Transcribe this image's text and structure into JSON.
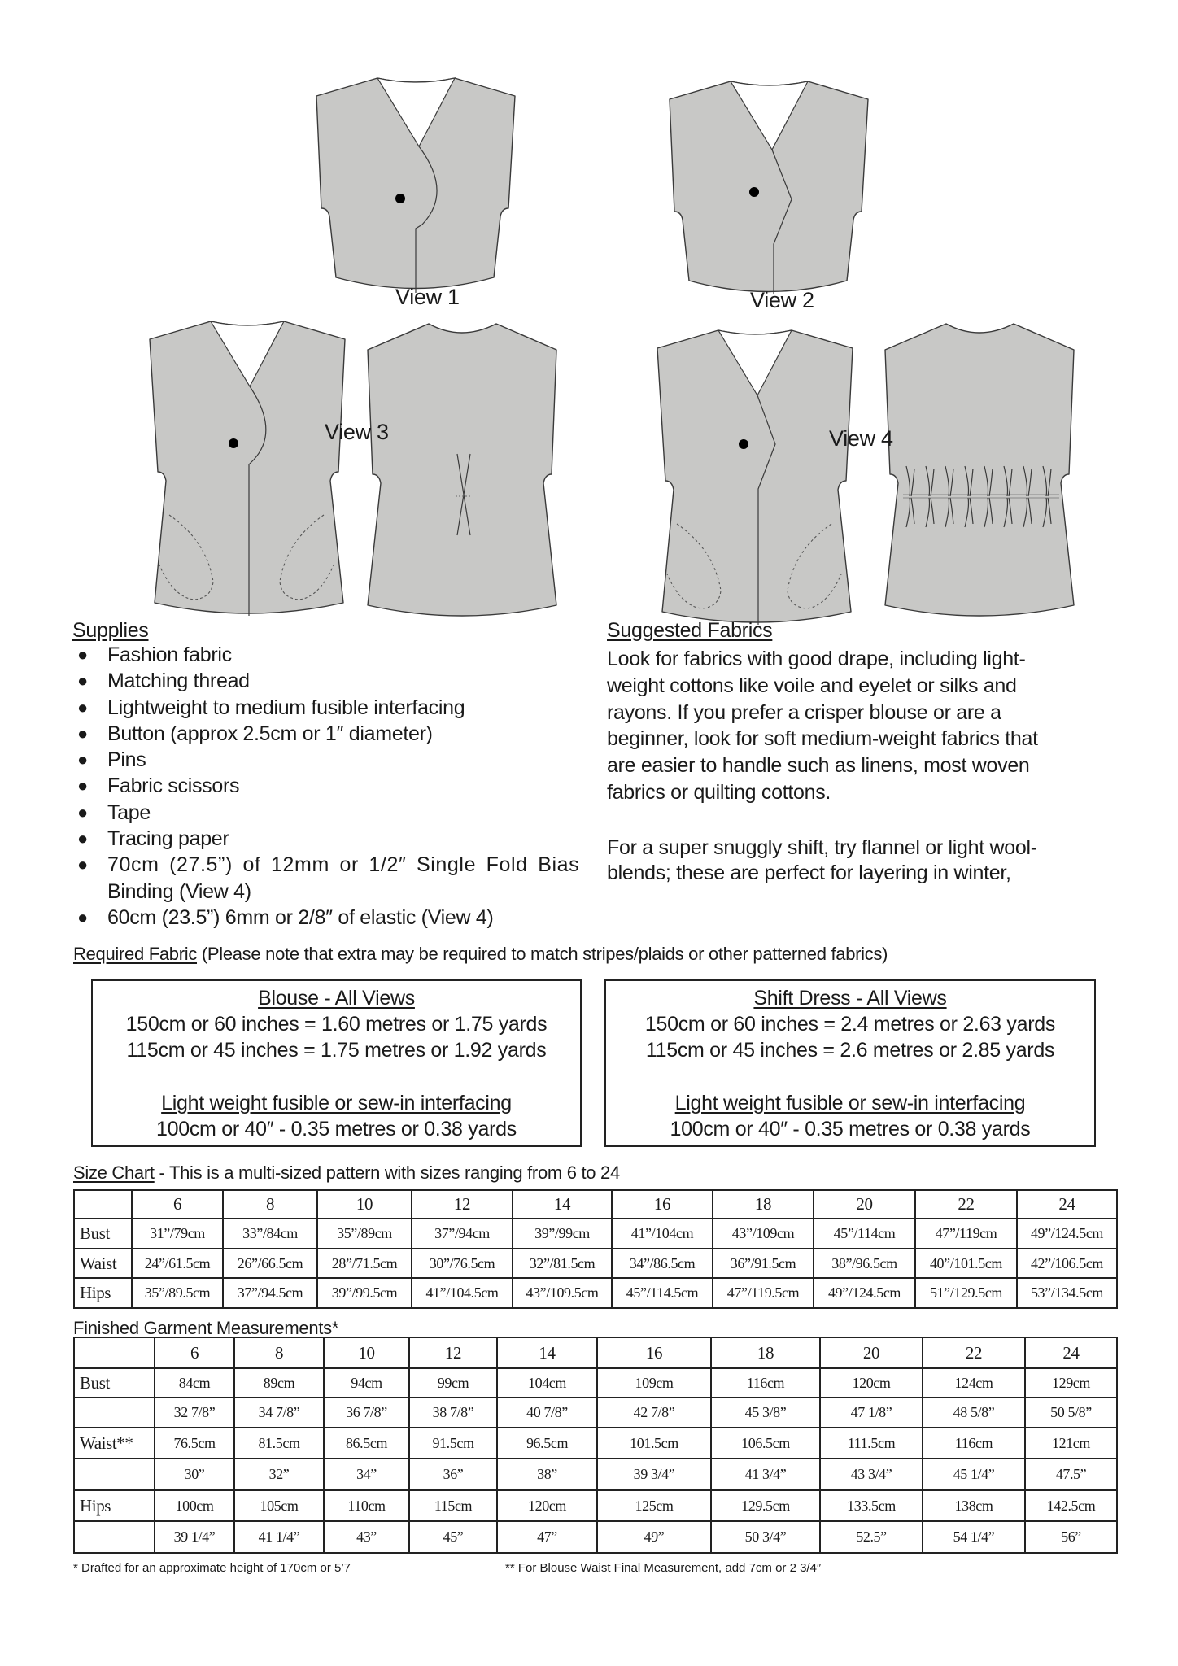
{
  "colors": {
    "garment_fill": "#c8c8c6",
    "outline": "#3a3a3a",
    "text": "#1a1a1a"
  },
  "views": {
    "view1": "View 1",
    "view2": "View 2",
    "view3": "View 3",
    "view4": "View 4"
  },
  "supplies": {
    "title": "Supplies",
    "items": [
      "Fashion fabric",
      "Matching thread",
      "Lightweight to medium fusible interfacing",
      "Button (approx 2.5cm or 1″ diameter)",
      "Pins",
      "Fabric scissors",
      "Tape",
      "Tracing paper",
      "70cm (27.5”) of 12mm or 1/2″ Single Fold Bias",
      "Binding (View 4)",
      "60cm (23.5”) 6mm or 2/8″ of elastic (View 4)"
    ]
  },
  "fabrics": {
    "title": "Suggested Fabrics",
    "para1": [
      "Look for fabrics with good drape, including light-",
      "weight cottons like voile and eyelet or silks and",
      "rayons. If you prefer a crisper blouse or are a",
      "beginner, look for soft medium-weight fabrics that",
      "are easier to handle such as linens, most woven",
      "fabrics or quilting cottons."
    ],
    "para2": [
      "For a super snuggly shift, try flannel or light wool-",
      "blends; these are perfect for layering in winter,"
    ]
  },
  "required": {
    "title": "Required Fabric",
    "note": " (Please note that extra may be required to match stripes/plaids or other patterned fabrics)",
    "blouse": {
      "title": "Blouse - All Views",
      "line1": "150cm or 60 inches = 1.60 metres or 1.75 yards",
      "line2": "115cm or 45 inches = 1.75 metres or 1.92 yards",
      "interfacing_title": "Light weight fusible or sew-in interfacing",
      "interfacing": "100cm or 40″ - 0.35 metres or 0.38 yards"
    },
    "shift": {
      "title": "Shift Dress - All Views",
      "line1": "150cm or 60 inches = 2.4 metres or 2.63 yards",
      "line2": "115cm or 45 inches = 2.6 metres or 2.85 yards",
      "interfacing_title": "Light weight fusible or sew-in interfacing",
      "interfacing": "100cm or 40″ - 0.35 metres or 0.38 yards"
    }
  },
  "size_chart": {
    "title": "Size Chart",
    "subtitle": " - This is a multi-sized pattern with sizes ranging from 6 to 24",
    "sizes": [
      "6",
      "8",
      "10",
      "12",
      "14",
      "16",
      "18",
      "20",
      "22",
      "24"
    ],
    "rows": [
      {
        "label": "Bust",
        "values": [
          "31”/79cm",
          "33”/84cm",
          "35”/89cm",
          "37”/94cm",
          "39”/99cm",
          "41”/104cm",
          "43”/109cm",
          "45”/114cm",
          "47”/119cm",
          "49”/124.5cm"
        ]
      },
      {
        "label": "Waist",
        "values": [
          "24”/61.5cm",
          "26”/66.5cm",
          "28”/71.5cm",
          "30”/76.5cm",
          "32”/81.5cm",
          "34”/86.5cm",
          "36”/91.5cm",
          "38”/96.5cm",
          "40”/101.5cm",
          "42”/106.5cm"
        ]
      },
      {
        "label": "Hips",
        "values": [
          "35”/89.5cm",
          "37”/94.5cm",
          "39”/99.5cm",
          "41”/104.5cm",
          "43”/109.5cm",
          "45”/114.5cm",
          "47”/119.5cm",
          "49”/124.5cm",
          "51”/129.5cm",
          "53”/134.5cm"
        ]
      }
    ]
  },
  "finished": {
    "title": "Finished Garment Measurements",
    "title_mark": "*",
    "sizes": [
      "6",
      "8",
      "10",
      "12",
      "14",
      "16",
      "18",
      "20",
      "22",
      "24"
    ],
    "rows": [
      {
        "label": "Bust",
        "values": [
          "84cm",
          "89cm",
          "94cm",
          "99cm",
          "104cm",
          "109cm",
          "116cm",
          "120cm",
          "124cm",
          "129cm"
        ]
      },
      {
        "label": "",
        "values": [
          "32 7/8”",
          "34 7/8”",
          "36 7/8”",
          "38 7/8”",
          "40 7/8”",
          "42 7/8”",
          "45 3/8”",
          "47 1/8”",
          "48 5/8”",
          "50 5/8”"
        ]
      },
      {
        "label": "Waist**",
        "values": [
          "76.5cm",
          "81.5cm",
          "86.5cm",
          "91.5cm",
          "96.5cm",
          "101.5cm",
          "106.5cm",
          "111.5cm",
          "116cm",
          "121cm"
        ]
      },
      {
        "label": "",
        "values": [
          "30”",
          "32”",
          "34”",
          "36”",
          "38”",
          "39 3/4”",
          "41 3/4”",
          "43 3/4”",
          "45 1/4”",
          "47.5”"
        ]
      },
      {
        "label": "Hips",
        "values": [
          "100cm",
          "105cm",
          "110cm",
          "115cm",
          "120cm",
          "125cm",
          "129.5cm",
          "133.5cm",
          "138cm",
          "142.5cm"
        ]
      },
      {
        "label": "",
        "values": [
          "39 1/4”",
          "41 1/4”",
          "43”",
          "45”",
          "47”",
          "49”",
          "50 3/4”",
          "52.5”",
          "54 1/4”",
          "56”"
        ]
      }
    ],
    "footnote1": "* Drafted for an approximate height of 170cm or 5’7",
    "footnote2": "** For Blouse Waist Final Measurement, add 7cm or 2 3/4″"
  }
}
